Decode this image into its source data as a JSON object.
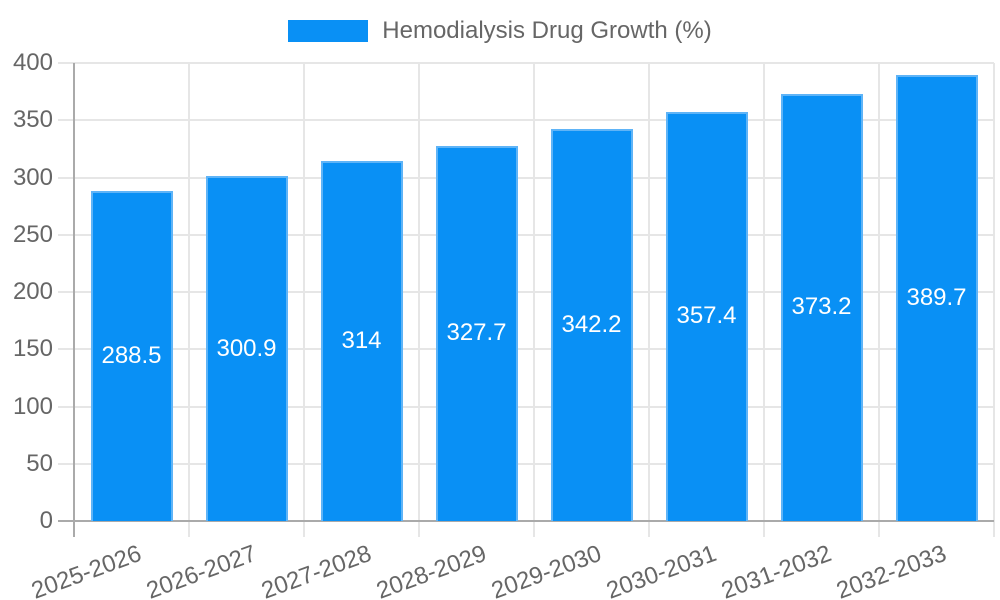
{
  "legend": {
    "label": "Hemodialysis Drug Growth (%)"
  },
  "chart_data": {
    "type": "bar",
    "title": "Hemodialysis Drug Growth (%)",
    "series_name": "Hemodialysis Drug Growth (%)",
    "categories": [
      "2025-2026",
      "2026-2027",
      "2027-2028",
      "2028-2029",
      "2029-2030",
      "2030-2031",
      "2031-2032",
      "2032-2033"
    ],
    "values": [
      288.5,
      300.9,
      314,
      327.7,
      342.2,
      357.4,
      373.2,
      389.7
    ],
    "value_labels": [
      "288.5",
      "300.9",
      "314",
      "327.7",
      "342.2",
      "357.4",
      "373.2",
      "389.7"
    ],
    "xlabel": "",
    "ylabel": "",
    "ylim": [
      0,
      400
    ],
    "ytick_step": 50,
    "yticks": [
      0,
      50,
      100,
      150,
      200,
      250,
      300,
      350,
      400
    ],
    "grid": true,
    "legend_position": "top",
    "x_label_rotation_deg": -20,
    "colors": {
      "bar_fill": "#0990F5",
      "bar_border": "#5FB4F7",
      "grid": "#E6E6E6",
      "axis": "#AAAAAA",
      "tick_label": "#666666",
      "value_label": "#FFFFFF",
      "background": "#FFFFFF"
    }
  }
}
